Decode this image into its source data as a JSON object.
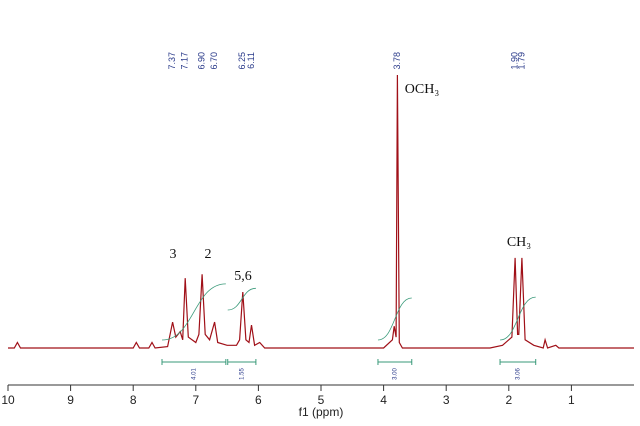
{
  "chart_data": {
    "type": "line",
    "xlabel": "f1 (ppm)",
    "xlim": [
      10,
      0
    ],
    "ylim": [
      0,
      100
    ],
    "xticks": [
      10,
      9,
      8,
      7,
      6,
      5,
      4,
      3,
      2,
      1
    ],
    "color": "#a01018",
    "x": [
      10.0,
      9.9,
      9.85,
      9.8,
      8.0,
      7.95,
      7.9,
      7.75,
      7.7,
      7.65,
      7.45,
      7.37,
      7.32,
      7.25,
      7.21,
      7.17,
      7.12,
      7.0,
      6.95,
      6.9,
      6.85,
      6.78,
      6.7,
      6.65,
      6.5,
      6.35,
      6.3,
      6.25,
      6.2,
      6.15,
      6.11,
      6.06,
      5.98,
      5.9,
      4.0,
      3.86,
      3.83,
      3.8,
      3.78,
      3.75,
      3.7,
      2.3,
      2.1,
      1.95,
      1.9,
      1.86,
      1.84,
      1.79,
      1.74,
      1.6,
      1.45,
      1.42,
      1.38,
      1.25,
      1.2,
      0.0
    ],
    "y": [
      0,
      0,
      2,
      0,
      0,
      2,
      0,
      0,
      2,
      0,
      0.5,
      9.5,
      4,
      6,
      3,
      25.6,
      4,
      2,
      5,
      27,
      5,
      3,
      9.5,
      2,
      1,
      1,
      3,
      20.5,
      3,
      2,
      8.4,
      1,
      2,
      0,
      0,
      3,
      8,
      4,
      100,
      2,
      0,
      0,
      1,
      4,
      33,
      5,
      5,
      33,
      3,
      1,
      0,
      3,
      0,
      1,
      0,
      0
    ],
    "peak_labels": [
      {
        "value": 7.37,
        "label": "7.37"
      },
      {
        "value": 7.17,
        "label": "7.17"
      },
      {
        "value": 6.9,
        "label": "6.90"
      },
      {
        "value": 6.7,
        "label": "6.70"
      },
      {
        "value": 6.25,
        "label": "6.25"
      },
      {
        "value": 6.11,
        "label": "6.11"
      },
      {
        "value": 3.78,
        "label": "3.78"
      },
      {
        "value": 1.9,
        "label": "1.90"
      },
      {
        "value": 1.79,
        "label": "1.79"
      }
    ],
    "integrals": [
      {
        "range": [
          7.54,
          6.52
        ],
        "value": 4.01,
        "label": "4.01"
      },
      {
        "range": [
          6.49,
          6.04
        ],
        "value": 1.55,
        "label": "1.55"
      },
      {
        "range": [
          4.09,
          3.55
        ],
        "value": 3,
        "label": "3.00"
      },
      {
        "range": [
          2.14,
          1.57
        ],
        "value": 3.06,
        "label": "3.06"
      }
    ],
    "annotations": [
      "3",
      "2",
      "5,6",
      "OCH₃",
      "CH₃"
    ]
  }
}
